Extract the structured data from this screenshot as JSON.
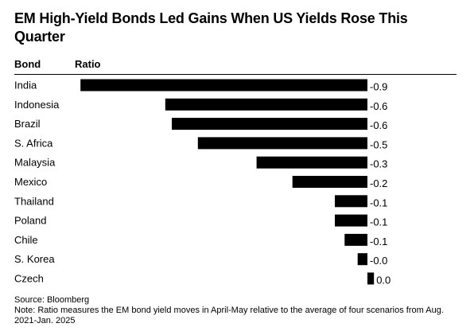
{
  "title": "EM High-Yield Bonds Led Gains When US Yields Rose This Quarter",
  "headers": {
    "bond": "Bond",
    "ratio": "Ratio"
  },
  "source": "Source: Bloomberg",
  "note": "Note: Ratio measures the EM bond yield moves in April-May relative to the average of four scenarios from Aug. 2021-Jan. 2025",
  "colors": {
    "bar": "#000000",
    "text": "#000000",
    "background": "#ffffff"
  },
  "chart_data": {
    "type": "bar",
    "orientation": "horizontal",
    "categories": [
      "India",
      "Indonesia",
      "Brazil",
      "S. Africa",
      "Malaysia",
      "Mexico",
      "Thailand",
      "Poland",
      "Chile",
      "S. Korea",
      "Czech"
    ],
    "values": [
      -0.88,
      -0.62,
      -0.6,
      -0.52,
      -0.34,
      -0.23,
      -0.1,
      -0.1,
      -0.07,
      -0.03,
      0.02
    ],
    "value_labels": [
      "-0.9",
      "-0.6",
      "-0.6",
      "-0.5",
      "-0.3",
      "-0.2",
      "-0.1",
      "-0.1",
      "-0.1",
      "-0.0",
      "0.0"
    ],
    "xlabel": "Ratio",
    "ylabel": "Bond",
    "xlim": [
      -0.9,
      0.03
    ],
    "grid": false,
    "legend": false
  }
}
